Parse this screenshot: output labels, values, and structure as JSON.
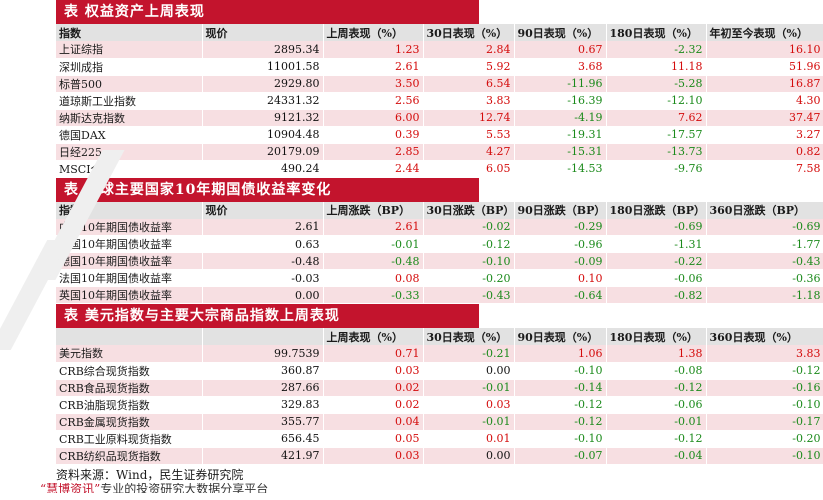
{
  "section1": {
    "title": "表  权益资产上周表现",
    "headers": [
      "指数",
      "现价",
      "上周表现（%）",
      "30日表现（%）",
      "90日表现（%）",
      "180日表现（%）",
      "年初至今表现（%）"
    ],
    "rows": [
      [
        "上证综指",
        "2895.34",
        "1.23",
        "2.84",
        "0.67",
        "-2.32",
        "16.10"
      ],
      [
        "深圳成指",
        "11001.58",
        "2.61",
        "5.92",
        "3.68",
        "11.18",
        "51.96"
      ],
      [
        "标普500",
        "2929.80",
        "3.50",
        "6.54",
        "-11.96",
        "-5.28",
        "16.87"
      ],
      [
        "道琼斯工业指数",
        "24331.32",
        "2.56",
        "3.83",
        "-16.39",
        "-12.10",
        "4.30"
      ],
      [
        "纳斯达克指数",
        "9121.32",
        "6.00",
        "12.74",
        "-4.19",
        "7.62",
        "37.47"
      ],
      [
        "德国DAX",
        "10904.48",
        "0.39",
        "5.53",
        "-19.31",
        "-17.57",
        "3.27"
      ],
      [
        "日经225",
        "20179.09",
        "2.85",
        "4.27",
        "-15.31",
        "-13.73",
        "0.82"
      ],
      [
        "MSCI全球",
        "490.24",
        "2.44",
        "6.05",
        "-14.53",
        "-9.76",
        "7.58"
      ]
    ]
  },
  "section2": {
    "title": "表  全球主要国家10年期国债收益率变化",
    "headers": [
      "指数",
      "现价",
      "上周涨跌（BP）",
      "30日涨跌（BP）",
      "90日涨跌（BP）",
      "180日涨跌（BP）",
      "360日涨跌（BP）"
    ],
    "rows": [
      [
        "中国10年期国债收益率",
        "2.61",
        "2.61",
        "-0.02",
        "-0.29",
        "-0.69",
        "-0.69"
      ],
      [
        "美国10年期国债收益率",
        "0.63",
        "-0.01",
        "-0.12",
        "-0.96",
        "-1.31",
        "-1.77"
      ],
      [
        "德国10年期国债收益率",
        "-0.48",
        "-0.48",
        "-0.10",
        "-0.09",
        "-0.22",
        "-0.43"
      ],
      [
        "法国10年期国债收益率",
        "-0.03",
        "0.08",
        "-0.20",
        "0.10",
        "-0.06",
        "-0.36"
      ],
      [
        "英国10年期国债收益率",
        "0.00",
        "-0.33",
        "-0.43",
        "-0.64",
        "-0.82",
        "-1.18"
      ]
    ]
  },
  "section3": {
    "title": "表  美元指数与主要大宗商品指数上周表现",
    "headers": [
      "",
      "",
      "上周表现（%）",
      "30日表现（%）",
      "90日表现（%）",
      "180日表现（%）",
      "360日表现（%）"
    ],
    "rows": [
      [
        "美元指数",
        "99.7539",
        "0.71",
        "-0.21",
        "1.06",
        "1.38",
        "3.83"
      ],
      [
        "CRB综合现货指数",
        "360.87",
        "0.03",
        "0.00",
        "-0.10",
        "-0.08",
        "-0.12"
      ],
      [
        "CRB食品现货指数",
        "287.66",
        "0.02",
        "-0.01",
        "-0.14",
        "-0.12",
        "-0.16"
      ],
      [
        "CRB油脂现货指数",
        "329.83",
        "0.02",
        "0.03",
        "-0.12",
        "-0.06",
        "-0.10"
      ],
      [
        "CRB金属现货指数",
        "355.77",
        "0.04",
        "-0.01",
        "-0.12",
        "-0.01",
        "-0.17"
      ],
      [
        "CRB工业原料现货指数",
        "656.45",
        "0.05",
        "0.01",
        "-0.10",
        "-0.12",
        "-0.20"
      ],
      [
        "CRB纺织品现货指数",
        "421.97",
        "0.03",
        "0.00",
        "-0.07",
        "-0.04",
        "-0.10"
      ]
    ]
  },
  "source": "资料来源：Wind，民生证券研究院",
  "footer": {
    "brand": "“慧博资讯”",
    "text": "专业的投资研究大数据分享平台"
  }
}
